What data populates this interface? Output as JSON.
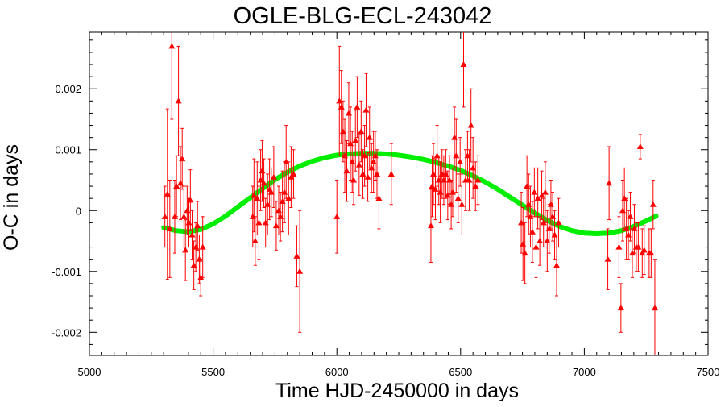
{
  "chart_data": {
    "type": "scatter",
    "title": "OGLE-BLG-ECL-243042",
    "xlabel": "Time HJD-2450000 in days",
    "ylabel": "O-C in days",
    "xlim": [
      5000,
      7500
    ],
    "ylim": [
      -0.00238,
      0.00293
    ],
    "x_ticks": [
      5000,
      5500,
      6000,
      6500,
      7000,
      7500
    ],
    "x_tick_labels": [
      "5000",
      "5500",
      "6000",
      "6500",
      "7000",
      "7500"
    ],
    "y_ticks": [
      -0.002,
      -0.001,
      0,
      0.001,
      0.002
    ],
    "y_tick_labels": [
      "-0.002",
      "-0.001",
      "0",
      "0.001",
      "0.002"
    ],
    "grid": false,
    "colors": {
      "points": "#ff0000",
      "fit": "#00ee00",
      "axes": "#000000"
    },
    "series": [
      {
        "marker": "triangle",
        "error_bars": true,
        "points": [
          {
            "x": 5305,
            "y": -0.0001,
            "err": 0.0005
          },
          {
            "x": 5315,
            "y": 0.00027,
            "err": 0.0014
          },
          {
            "x": 5325,
            "y": -0.0003,
            "err": 0.0008
          },
          {
            "x": 5333,
            "y": 0.0027,
            "err": 0.0012
          },
          {
            "x": 5345,
            "y": -0.0001,
            "err": 0.0006
          },
          {
            "x": 5352,
            "y": 0.0004,
            "err": 0.0005
          },
          {
            "x": 5360,
            "y": 0.0018,
            "err": 0.0009
          },
          {
            "x": 5368,
            "y": 0.00045,
            "err": 0.0006
          },
          {
            "x": 5375,
            "y": 0.00085,
            "err": 0.0005
          },
          {
            "x": 5382,
            "y": -0.0001,
            "err": 0.0005
          },
          {
            "x": 5388,
            "y": -0.00065,
            "err": 0.0005
          },
          {
            "x": 5395,
            "y": 0.0,
            "err": 0.0004
          },
          {
            "x": 5402,
            "y": -0.0002,
            "err": 0.0004
          },
          {
            "x": 5408,
            "y": 0.00017,
            "err": 0.0005
          },
          {
            "x": 5415,
            "y": -0.0004,
            "err": 0.0004
          },
          {
            "x": 5422,
            "y": -0.0009,
            "err": 0.0004
          },
          {
            "x": 5430,
            "y": -0.0006,
            "err": 0.0004
          },
          {
            "x": 5437,
            "y": -0.00025,
            "err": 0.0004
          },
          {
            "x": 5444,
            "y": -0.0008,
            "err": 0.0004
          },
          {
            "x": 5450,
            "y": -0.0011,
            "err": 0.0003
          },
          {
            "x": 5458,
            "y": -0.0006,
            "err": 0.0005
          },
          {
            "x": 5660,
            "y": -0.0001,
            "err": 0.0005
          },
          {
            "x": 5665,
            "y": 0.00025,
            "err": 0.0006
          },
          {
            "x": 5670,
            "y": -0.0005,
            "err": 0.0004
          },
          {
            "x": 5678,
            "y": 0.0002,
            "err": 0.0006
          },
          {
            "x": 5685,
            "y": -0.0002,
            "err": 0.0006
          },
          {
            "x": 5692,
            "y": 0.0005,
            "err": 0.0005
          },
          {
            "x": 5698,
            "y": 0.00065,
            "err": 0.0005
          },
          {
            "x": 5705,
            "y": 0.00045,
            "err": 0.0004
          },
          {
            "x": 5712,
            "y": -0.0002,
            "err": 0.0004
          },
          {
            "x": 5720,
            "y": 0.0001,
            "err": 0.0005
          },
          {
            "x": 5728,
            "y": 0.00035,
            "err": 0.0005
          },
          {
            "x": 5735,
            "y": 0.0003,
            "err": 0.0004
          },
          {
            "x": 5745,
            "y": 0.00055,
            "err": 0.0005
          },
          {
            "x": 5755,
            "y": -0.00025,
            "err": 0.0004
          },
          {
            "x": 5765,
            "y": 0.0,
            "err": 0.0004
          },
          {
            "x": 5772,
            "y": -0.0001,
            "err": 0.0004
          },
          {
            "x": 5780,
            "y": 0.00015,
            "err": 0.0005
          },
          {
            "x": 5788,
            "y": 0.0003,
            "err": 0.0005
          },
          {
            "x": 5795,
            "y": 0.0008,
            "err": 0.0006
          },
          {
            "x": 5805,
            "y": 0.0002,
            "err": 0.0006
          },
          {
            "x": 5815,
            "y": 0.00055,
            "err": 0.0005
          },
          {
            "x": 5825,
            "y": 0.0006,
            "err": 0.0004
          },
          {
            "x": 5838,
            "y": -0.00075,
            "err": 0.0005
          },
          {
            "x": 5850,
            "y": -0.001,
            "err": 0.001
          },
          {
            "x": 6000,
            "y": -0.0001,
            "err": 0.0006
          },
          {
            "x": 6010,
            "y": 0.0018,
            "err": 0.0009
          },
          {
            "x": 6018,
            "y": 0.0017,
            "err": 0.0006
          },
          {
            "x": 6025,
            "y": 0.0013,
            "err": 0.0005
          },
          {
            "x": 6032,
            "y": 0.0009,
            "err": 0.0006
          },
          {
            "x": 6040,
            "y": 0.00065,
            "err": 0.0005
          },
          {
            "x": 6048,
            "y": 0.0016,
            "err": 0.0005
          },
          {
            "x": 6055,
            "y": 0.0011,
            "err": 0.0006
          },
          {
            "x": 6062,
            "y": 0.0008,
            "err": 0.0005
          },
          {
            "x": 6068,
            "y": 0.0005,
            "err": 0.0004
          },
          {
            "x": 6075,
            "y": 0.00115,
            "err": 0.0005
          },
          {
            "x": 6082,
            "y": 0.0017,
            "err": 0.0005
          },
          {
            "x": 6090,
            "y": 0.00075,
            "err": 0.0005
          },
          {
            "x": 6098,
            "y": 0.0013,
            "err": 0.0005
          },
          {
            "x": 6105,
            "y": 0.0006,
            "err": 0.0004
          },
          {
            "x": 6112,
            "y": 0.0009,
            "err": 0.0005
          },
          {
            "x": 6118,
            "y": 0.00165,
            "err": 0.0006
          },
          {
            "x": 6125,
            "y": 0.00055,
            "err": 0.0004
          },
          {
            "x": 6132,
            "y": 0.0012,
            "err": 0.0005
          },
          {
            "x": 6140,
            "y": 0.0007,
            "err": 0.0004
          },
          {
            "x": 6148,
            "y": 0.0008,
            "err": 0.0005
          },
          {
            "x": 6155,
            "y": 0.0009,
            "err": 0.0004
          },
          {
            "x": 6162,
            "y": 0.0006,
            "err": 0.0004
          },
          {
            "x": 6170,
            "y": 0.0002,
            "err": 0.0005
          },
          {
            "x": 6220,
            "y": 0.0006,
            "err": 0.0005
          },
          {
            "x": 6380,
            "y": -0.00025,
            "err": 0.0006
          },
          {
            "x": 6385,
            "y": 0.0004,
            "err": 0.0005
          },
          {
            "x": 6390,
            "y": 0.0006,
            "err": 0.0005
          },
          {
            "x": 6398,
            "y": 0.00035,
            "err": 0.0005
          },
          {
            "x": 6405,
            "y": 0.0009,
            "err": 0.0005
          },
          {
            "x": 6412,
            "y": 0.0005,
            "err": 0.0004
          },
          {
            "x": 6418,
            "y": 0.0003,
            "err": 0.0005
          },
          {
            "x": 6425,
            "y": 0.0006,
            "err": 0.0004
          },
          {
            "x": 6432,
            "y": 0.0005,
            "err": 0.0004
          },
          {
            "x": 6440,
            "y": 0.0006,
            "err": 0.0004
          },
          {
            "x": 6448,
            "y": 0.00025,
            "err": 0.0004
          },
          {
            "x": 6455,
            "y": 0.0005,
            "err": 0.0004
          },
          {
            "x": 6462,
            "y": 0.0001,
            "err": 0.0004
          },
          {
            "x": 6468,
            "y": 0.0003,
            "err": 0.0004
          },
          {
            "x": 6475,
            "y": 0.0012,
            "err": 0.0005
          },
          {
            "x": 6482,
            "y": 0.0009,
            "err": 0.0006
          },
          {
            "x": 6490,
            "y": 0.0002,
            "err": 0.0004
          },
          {
            "x": 6498,
            "y": 0.0008,
            "err": 0.0004
          },
          {
            "x": 6505,
            "y": 0.0001,
            "err": 0.0005
          },
          {
            "x": 6512,
            "y": 0.0024,
            "err": 0.0007
          },
          {
            "x": 6520,
            "y": 0.0005,
            "err": 0.0005
          },
          {
            "x": 6528,
            "y": 0.0009,
            "err": 0.0004
          },
          {
            "x": 6535,
            "y": 0.0005,
            "err": 0.0005
          },
          {
            "x": 6542,
            "y": 0.0014,
            "err": 0.0006
          },
          {
            "x": 6550,
            "y": 0.0007,
            "err": 0.0005
          },
          {
            "x": 6560,
            "y": 0.0004,
            "err": 0.0004
          },
          {
            "x": 6570,
            "y": 0.0005,
            "err": 0.0004
          },
          {
            "x": 6745,
            "y": -0.0002,
            "err": 0.0005
          },
          {
            "x": 6752,
            "y": -0.00055,
            "err": 0.0006
          },
          {
            "x": 6760,
            "y": -0.0007,
            "err": 0.0005
          },
          {
            "x": 6768,
            "y": 0.0004,
            "err": 0.0005
          },
          {
            "x": 6775,
            "y": 0.0001,
            "err": 0.0005
          },
          {
            "x": 6782,
            "y": -0.0001,
            "err": 0.0005
          },
          {
            "x": 6790,
            "y": -0.00035,
            "err": 0.0005
          },
          {
            "x": 6798,
            "y": 0.0003,
            "err": 0.0004
          },
          {
            "x": 6805,
            "y": -0.0006,
            "err": 0.0005
          },
          {
            "x": 6812,
            "y": 0.0002,
            "err": 0.0005
          },
          {
            "x": 6820,
            "y": -0.0005,
            "err": 0.0004
          },
          {
            "x": 6828,
            "y": 0.00025,
            "err": 0.0004
          },
          {
            "x": 6835,
            "y": -0.0002,
            "err": 0.0004
          },
          {
            "x": 6842,
            "y": 0.0003,
            "err": 0.0005
          },
          {
            "x": 6850,
            "y": -0.0005,
            "err": 0.0005
          },
          {
            "x": 6858,
            "y": -0.0003,
            "err": 0.0004
          },
          {
            "x": 6865,
            "y": 0.0001,
            "err": 0.0004
          },
          {
            "x": 6872,
            "y": -0.0001,
            "err": 0.0004
          },
          {
            "x": 6880,
            "y": -0.0004,
            "err": 0.0004
          },
          {
            "x": 6888,
            "y": -0.0009,
            "err": 0.0005
          },
          {
            "x": 6896,
            "y": -0.0002,
            "err": 0.0004
          },
          {
            "x": 7095,
            "y": -0.0008,
            "err": 0.0005
          },
          {
            "x": 7100,
            "y": 0.00045,
            "err": 0.0006
          },
          {
            "x": 7140,
            "y": -0.0006,
            "err": 0.0005
          },
          {
            "x": 7148,
            "y": -0.0016,
            "err": 0.0004
          },
          {
            "x": 7155,
            "y": 0.0,
            "err": 0.0005
          },
          {
            "x": 7162,
            "y": 0.0002,
            "err": 0.0005
          },
          {
            "x": 7170,
            "y": -0.0003,
            "err": 0.0005
          },
          {
            "x": 7178,
            "y": -0.0004,
            "err": 0.0004
          },
          {
            "x": 7186,
            "y": -0.0001,
            "err": 0.0004
          },
          {
            "x": 7194,
            "y": -0.0007,
            "err": 0.0004
          },
          {
            "x": 7202,
            "y": -0.0003,
            "err": 0.0004
          },
          {
            "x": 7210,
            "y": -0.0006,
            "err": 0.0004
          },
          {
            "x": 7218,
            "y": -0.0006,
            "err": 0.0004
          },
          {
            "x": 7226,
            "y": 0.00105,
            "err": 0.0002
          },
          {
            "x": 7234,
            "y": -0.0007,
            "err": 0.0004
          },
          {
            "x": 7242,
            "y": -0.00065,
            "err": 0.0004
          },
          {
            "x": 7262,
            "y": -0.0007,
            "err": 0.0004
          },
          {
            "x": 7270,
            "y": -0.0007,
            "err": 0.0004
          },
          {
            "x": 7278,
            "y": 0.0001,
            "err": 0.0004
          },
          {
            "x": 7285,
            "y": -0.0016,
            "err": 0.0008
          }
        ]
      },
      {
        "marker": "line",
        "points": [
          {
            "x": 5300,
            "y": -0.00028
          },
          {
            "x": 5350,
            "y": -0.00033
          },
          {
            "x": 5400,
            "y": -0.00035
          },
          {
            "x": 5450,
            "y": -0.00031
          },
          {
            "x": 5500,
            "y": -0.00022
          },
          {
            "x": 5550,
            "y": -9e-05
          },
          {
            "x": 5600,
            "y": 6e-05
          },
          {
            "x": 5650,
            "y": 0.00021
          },
          {
            "x": 5700,
            "y": 0.00036
          },
          {
            "x": 5750,
            "y": 0.00051
          },
          {
            "x": 5800,
            "y": 0.00063
          },
          {
            "x": 5850,
            "y": 0.00073
          },
          {
            "x": 5900,
            "y": 0.00081
          },
          {
            "x": 5950,
            "y": 0.00087
          },
          {
            "x": 6000,
            "y": 0.00091
          },
          {
            "x": 6050,
            "y": 0.00093
          },
          {
            "x": 6100,
            "y": 0.00094
          },
          {
            "x": 6150,
            "y": 0.00094
          },
          {
            "x": 6200,
            "y": 0.00093
          },
          {
            "x": 6250,
            "y": 0.00091
          },
          {
            "x": 6300,
            "y": 0.00088
          },
          {
            "x": 6350,
            "y": 0.00084
          },
          {
            "x": 6400,
            "y": 0.00079
          },
          {
            "x": 6450,
            "y": 0.00073
          },
          {
            "x": 6500,
            "y": 0.00066
          },
          {
            "x": 6550,
            "y": 0.00057
          },
          {
            "x": 6600,
            "y": 0.00047
          },
          {
            "x": 6650,
            "y": 0.00035
          },
          {
            "x": 6700,
            "y": 0.00022
          },
          {
            "x": 6750,
            "y": 9e-05
          },
          {
            "x": 6800,
            "y": -4e-05
          },
          {
            "x": 6850,
            "y": -0.00016
          },
          {
            "x": 6900,
            "y": -0.00026
          },
          {
            "x": 6950,
            "y": -0.00033
          },
          {
            "x": 7000,
            "y": -0.00037
          },
          {
            "x": 7050,
            "y": -0.00038
          },
          {
            "x": 7100,
            "y": -0.00037
          },
          {
            "x": 7150,
            "y": -0.00033
          },
          {
            "x": 7200,
            "y": -0.00026
          },
          {
            "x": 7250,
            "y": -0.00017
          },
          {
            "x": 7290,
            "y": -9e-05
          }
        ]
      }
    ]
  }
}
